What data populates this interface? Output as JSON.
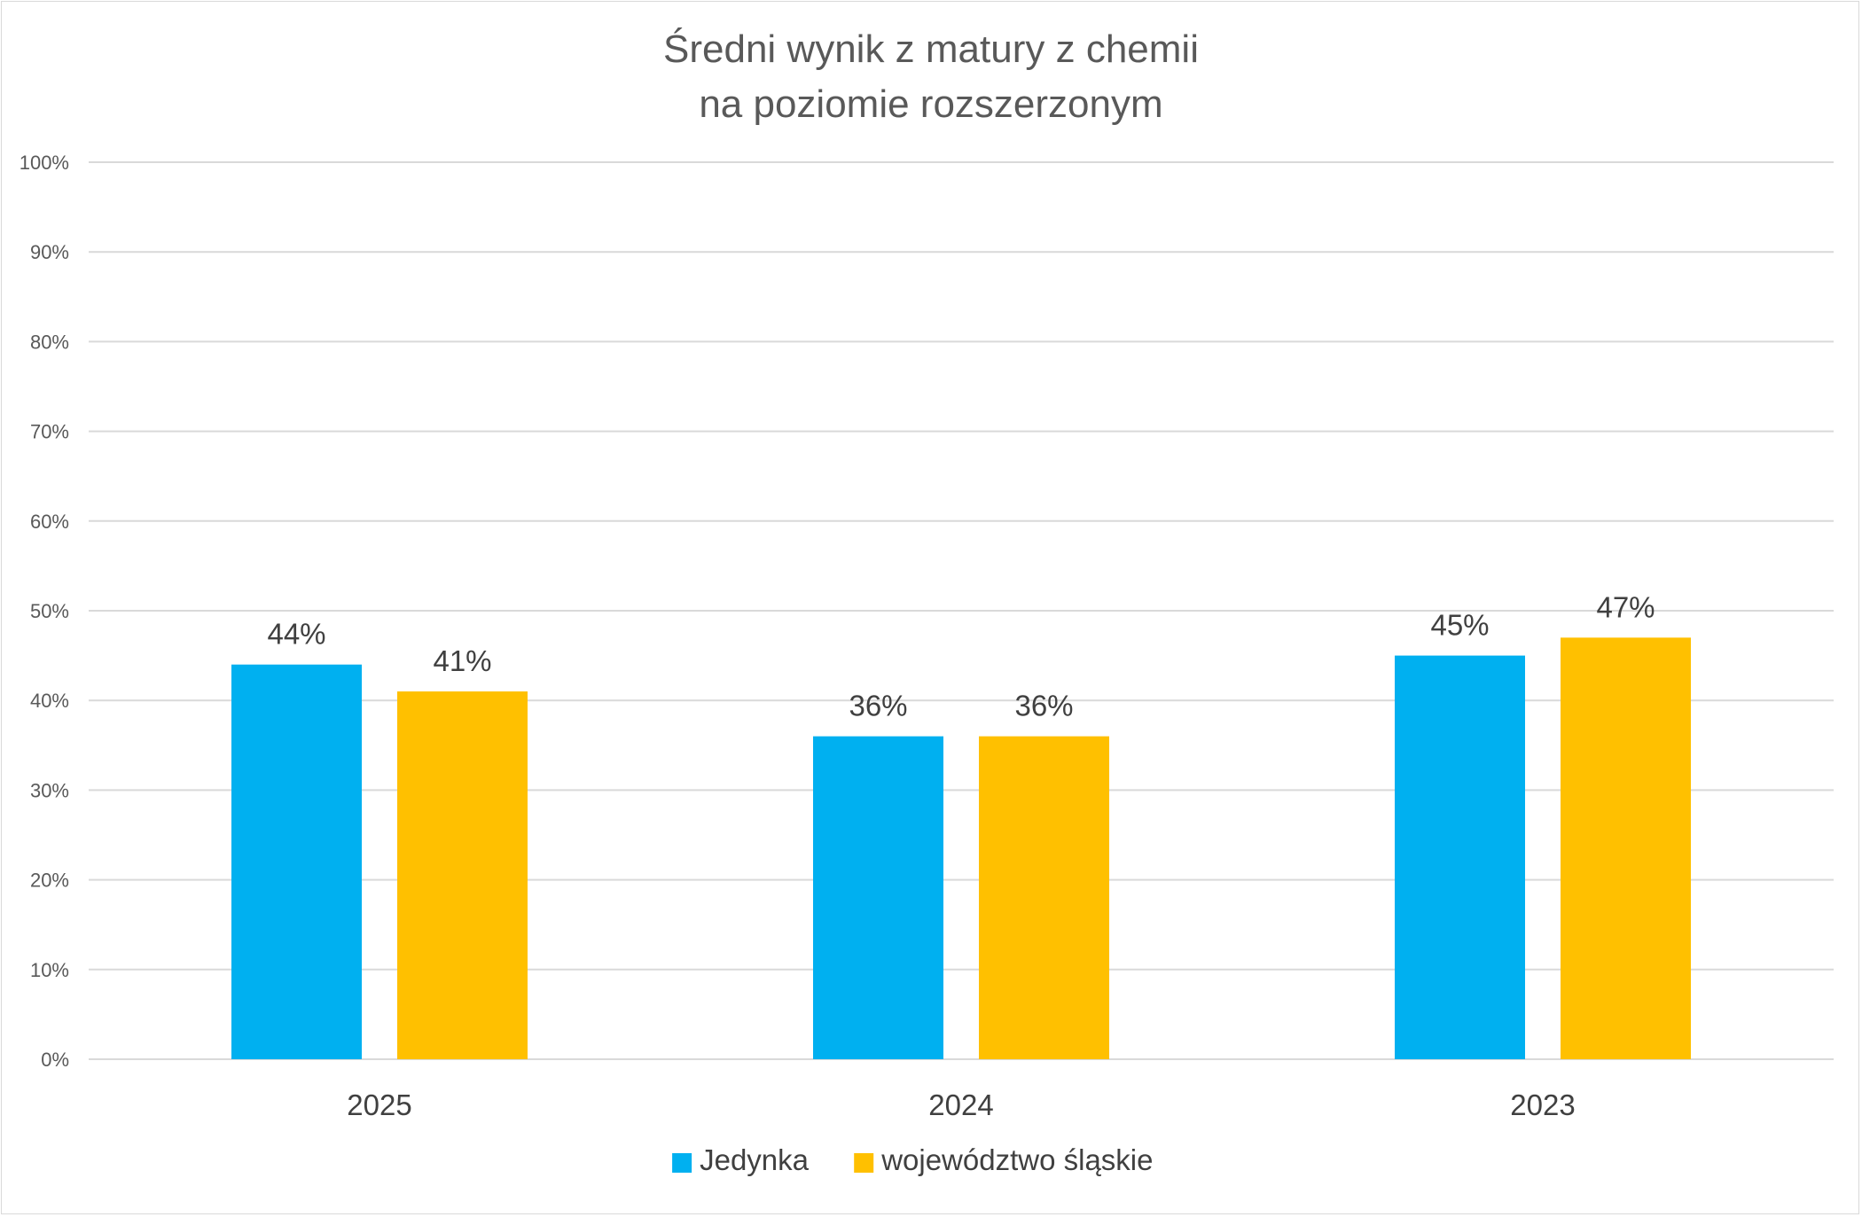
{
  "chart_data": {
    "type": "bar",
    "title_lines": [
      "Średni wynik z matury z chemii",
      "na poziomie rozszerzonym"
    ],
    "categories": [
      "2025",
      "2024",
      "2023"
    ],
    "series": [
      {
        "name": "Jedynka",
        "values": [
          44,
          36,
          45
        ],
        "color": "#00b0f0"
      },
      {
        "name": "województwo śląskie",
        "values": [
          41,
          36,
          47
        ],
        "color": "#ffc000"
      }
    ],
    "y_ticks": [
      "0%",
      "10%",
      "20%",
      "30%",
      "40%",
      "50%",
      "60%",
      "70%",
      "80%",
      "90%",
      "100%"
    ],
    "ylim": [
      0,
      100
    ],
    "value_suffix": "%",
    "grid": true,
    "gridline_color": "#d9d9d9",
    "legend_position": "bottom",
    "xlabel": "",
    "ylabel": ""
  }
}
